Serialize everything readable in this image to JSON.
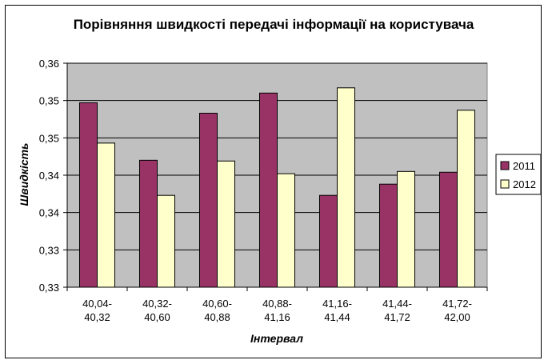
{
  "chart_data": {
    "type": "bar",
    "title": "Порівняння швидкості  передачі інформації на користувача",
    "xlabel": "Інтервал",
    "ylabel": "Швидкість",
    "categories": [
      [
        "40,04-",
        "40,32"
      ],
      [
        "40,32-",
        "40,60"
      ],
      [
        "40,60-",
        "40,88"
      ],
      [
        "40,88-",
        "41,16"
      ],
      [
        "41,16-",
        "41,44"
      ],
      [
        "41,44-",
        "41,72"
      ],
      [
        "41,72-",
        "42,00"
      ]
    ],
    "series": [
      {
        "name": "2011",
        "color": "#993366",
        "values": [
          0.3497,
          0.342,
          0.3483,
          0.351,
          0.3373,
          0.3388,
          0.3404
        ]
      },
      {
        "name": "2012",
        "color": "#ffffcc",
        "values": [
          0.3443,
          0.3373,
          0.3419,
          0.3402,
          0.3517,
          0.3405,
          0.3487
        ]
      }
    ],
    "ylim": [
      0.325,
      0.355
    ],
    "yticks": [
      0.325,
      0.33,
      0.335,
      0.34,
      0.345,
      0.35,
      0.355
    ],
    "ytick_labels": [
      "0,33",
      "0,33",
      "0,34",
      "0,34",
      "0,35",
      "0,35",
      "0,36"
    ],
    "plot_background": "#c0c0c0",
    "grid": true,
    "legend_position": "right"
  }
}
